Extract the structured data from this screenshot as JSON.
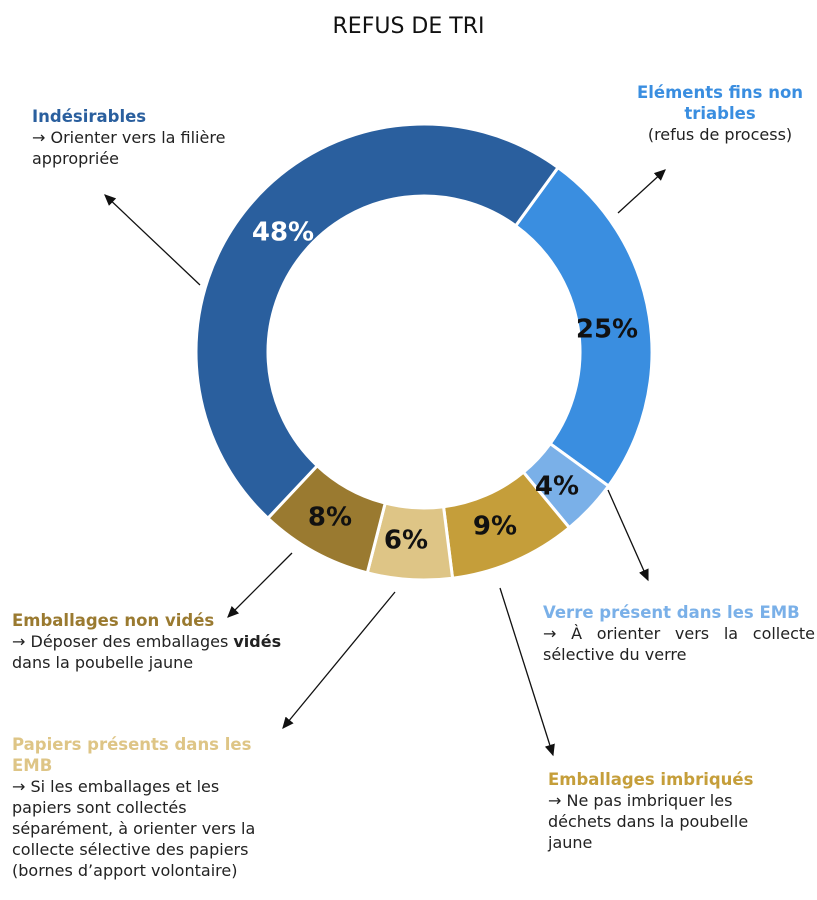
{
  "chart_data": {
    "type": "donut",
    "title": "REFUS DE TRI",
    "categories": [
      "Eléments fins non triables",
      "Verre présent dans les EMB",
      "Emballages imbriqués",
      "Papiers présents dans les EMB",
      "Emballages non vidés",
      "Indésirables"
    ],
    "values": [
      25,
      4,
      9,
      6,
      8,
      48
    ],
    "value_labels": [
      "25%",
      "4%",
      "9%",
      "6%",
      "8%",
      "48%"
    ],
    "colors": [
      "#3a8ee0",
      "#7ab0e8",
      "#c59e3a",
      "#dec586",
      "#9a7a30",
      "#2a5f9e"
    ],
    "descriptions": [
      [
        "(refus de process)"
      ],
      [
        "→ À orienter vers la collecte sélective du verre"
      ],
      [
        "→ Ne pas imbriquer les déchets dans la poubelle jaune"
      ],
      [
        "→ Si les emballages et les papiers sont collectés séparément, à orienter vers la collecte sélective des papiers (bornes d’apport volontaire)"
      ],
      [
        "→ Déposer des emballages ",
        "vidés",
        " dans la poubelle jaune"
      ],
      [
        "→ Orienter vers la filière appropriée"
      ]
    ]
  }
}
